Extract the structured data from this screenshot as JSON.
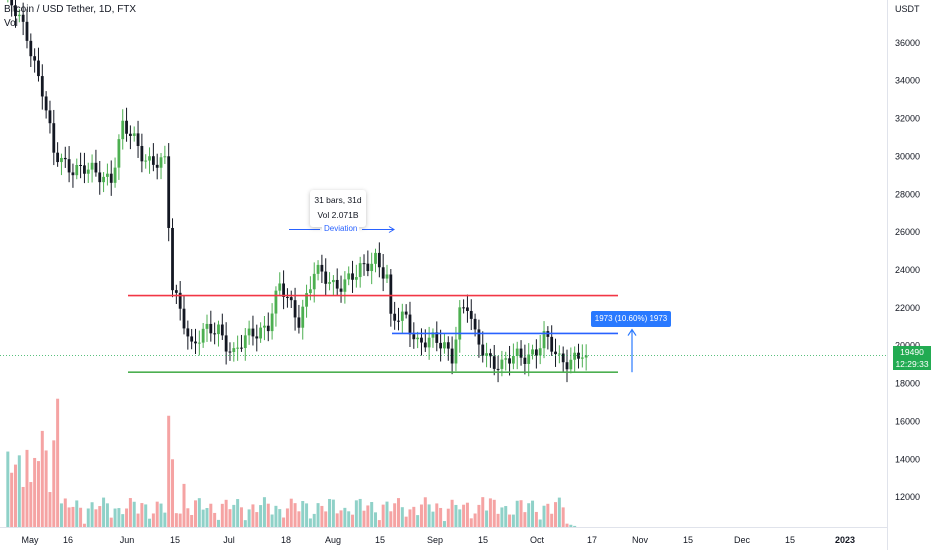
{
  "header": {
    "symbol_text": "Bitcoin / USD Tether, 1D, FTX",
    "volume_label": "Vol"
  },
  "price_axis": {
    "unit": "USDT"
  },
  "current_price": {
    "price": "19490",
    "countdown": "12:29:33"
  },
  "annotations": {
    "bars_range": "31 bars, 31d",
    "volume_range": "Vol 2.071B",
    "deviation_label": "Deviation",
    "range_measure": "1973 (10.60%) 1973"
  },
  "colors": {
    "up": "#26a69a",
    "up_candle": "#4caf50",
    "down_candle": "#131722",
    "vol_up": "#8fd1c8",
    "vol_down": "#f5a3a3",
    "resistance": "#f23645",
    "support": "#4caf50",
    "mid": "#2962ff",
    "measure": "#2979ff"
  },
  "chart_data": {
    "type": "candlestick",
    "y_range": [
      10000,
      38000
    ],
    "y_ticks": [
      12000,
      14000,
      16000,
      18000,
      20000,
      22000,
      24000,
      26000,
      28000,
      30000,
      32000,
      34000,
      36000
    ],
    "x_ticks": [
      {
        "label": "May",
        "bold": false
      },
      {
        "label": "16",
        "bold": false
      },
      {
        "label": "Jun",
        "bold": false
      },
      {
        "label": "15",
        "bold": false
      },
      {
        "label": "Jul",
        "bold": false
      },
      {
        "label": "18",
        "bold": false
      },
      {
        "label": "Aug",
        "bold": false
      },
      {
        "label": "15",
        "bold": false
      },
      {
        "label": "Sep",
        "bold": false
      },
      {
        "label": "15",
        "bold": false
      },
      {
        "label": "Oct",
        "bold": false
      },
      {
        "label": "17",
        "bold": false
      },
      {
        "label": "Nov",
        "bold": false
      },
      {
        "label": "15",
        "bold": false
      },
      {
        "label": "Dec",
        "bold": false
      },
      {
        "label": "15",
        "bold": false
      },
      {
        "label": "2023",
        "bold": true
      }
    ],
    "levels": {
      "resistance": 22650,
      "mid": 20650,
      "support": 18600
    },
    "anchors": [
      {
        "t": 0,
        "p": 38500
      },
      {
        "t": 6,
        "p": 36500
      },
      {
        "t": 10,
        "p": 33500
      },
      {
        "t": 13,
        "p": 30000
      },
      {
        "t": 18,
        "p": 29500
      },
      {
        "t": 24,
        "p": 29000
      },
      {
        "t": 28,
        "p": 29000
      },
      {
        "t": 31,
        "p": 31500
      },
      {
        "t": 37,
        "p": 30000
      },
      {
        "t": 42,
        "p": 29500
      },
      {
        "t": 44,
        "p": 23000
      },
      {
        "t": 47,
        "p": 21500
      },
      {
        "t": 49,
        "p": 20000
      },
      {
        "t": 52,
        "p": 20500
      },
      {
        "t": 56,
        "p": 21000
      },
      {
        "t": 60,
        "p": 19500
      },
      {
        "t": 65,
        "p": 20700
      },
      {
        "t": 69,
        "p": 21200
      },
      {
        "t": 72,
        "p": 23000
      },
      {
        "t": 77,
        "p": 21500
      },
      {
        "t": 81,
        "p": 23800
      },
      {
        "t": 86,
        "p": 23300
      },
      {
        "t": 92,
        "p": 23600
      },
      {
        "t": 97,
        "p": 24800
      },
      {
        "t": 100,
        "p": 23600
      },
      {
        "t": 101,
        "p": 21200
      },
      {
        "t": 105,
        "p": 21500
      },
      {
        "t": 108,
        "p": 20300
      },
      {
        "t": 115,
        "p": 20000
      },
      {
        "t": 117,
        "p": 19600
      },
      {
        "t": 119,
        "p": 21800
      },
      {
        "t": 121,
        "p": 22000
      },
      {
        "t": 123,
        "p": 20300
      },
      {
        "t": 126,
        "p": 19600
      },
      {
        "t": 130,
        "p": 18900
      },
      {
        "t": 134,
        "p": 19400
      },
      {
        "t": 139,
        "p": 19800
      },
      {
        "t": 141,
        "p": 20300
      },
      {
        "t": 145,
        "p": 19300
      },
      {
        "t": 149,
        "p": 19400
      },
      {
        "t": 152,
        "p": 19490
      }
    ],
    "volume_highlights": [
      {
        "t": 10,
        "v": 15500
      },
      {
        "t": 13,
        "v": 15000
      },
      {
        "t": 14,
        "v": 17200
      },
      {
        "t": 43,
        "v": 16300
      },
      {
        "t": 44,
        "v": 14000
      },
      {
        "t": 47,
        "v": 12700
      },
      {
        "t": 125,
        "v": 12000
      },
      {
        "t": 120,
        "v": 11600
      }
    ]
  }
}
